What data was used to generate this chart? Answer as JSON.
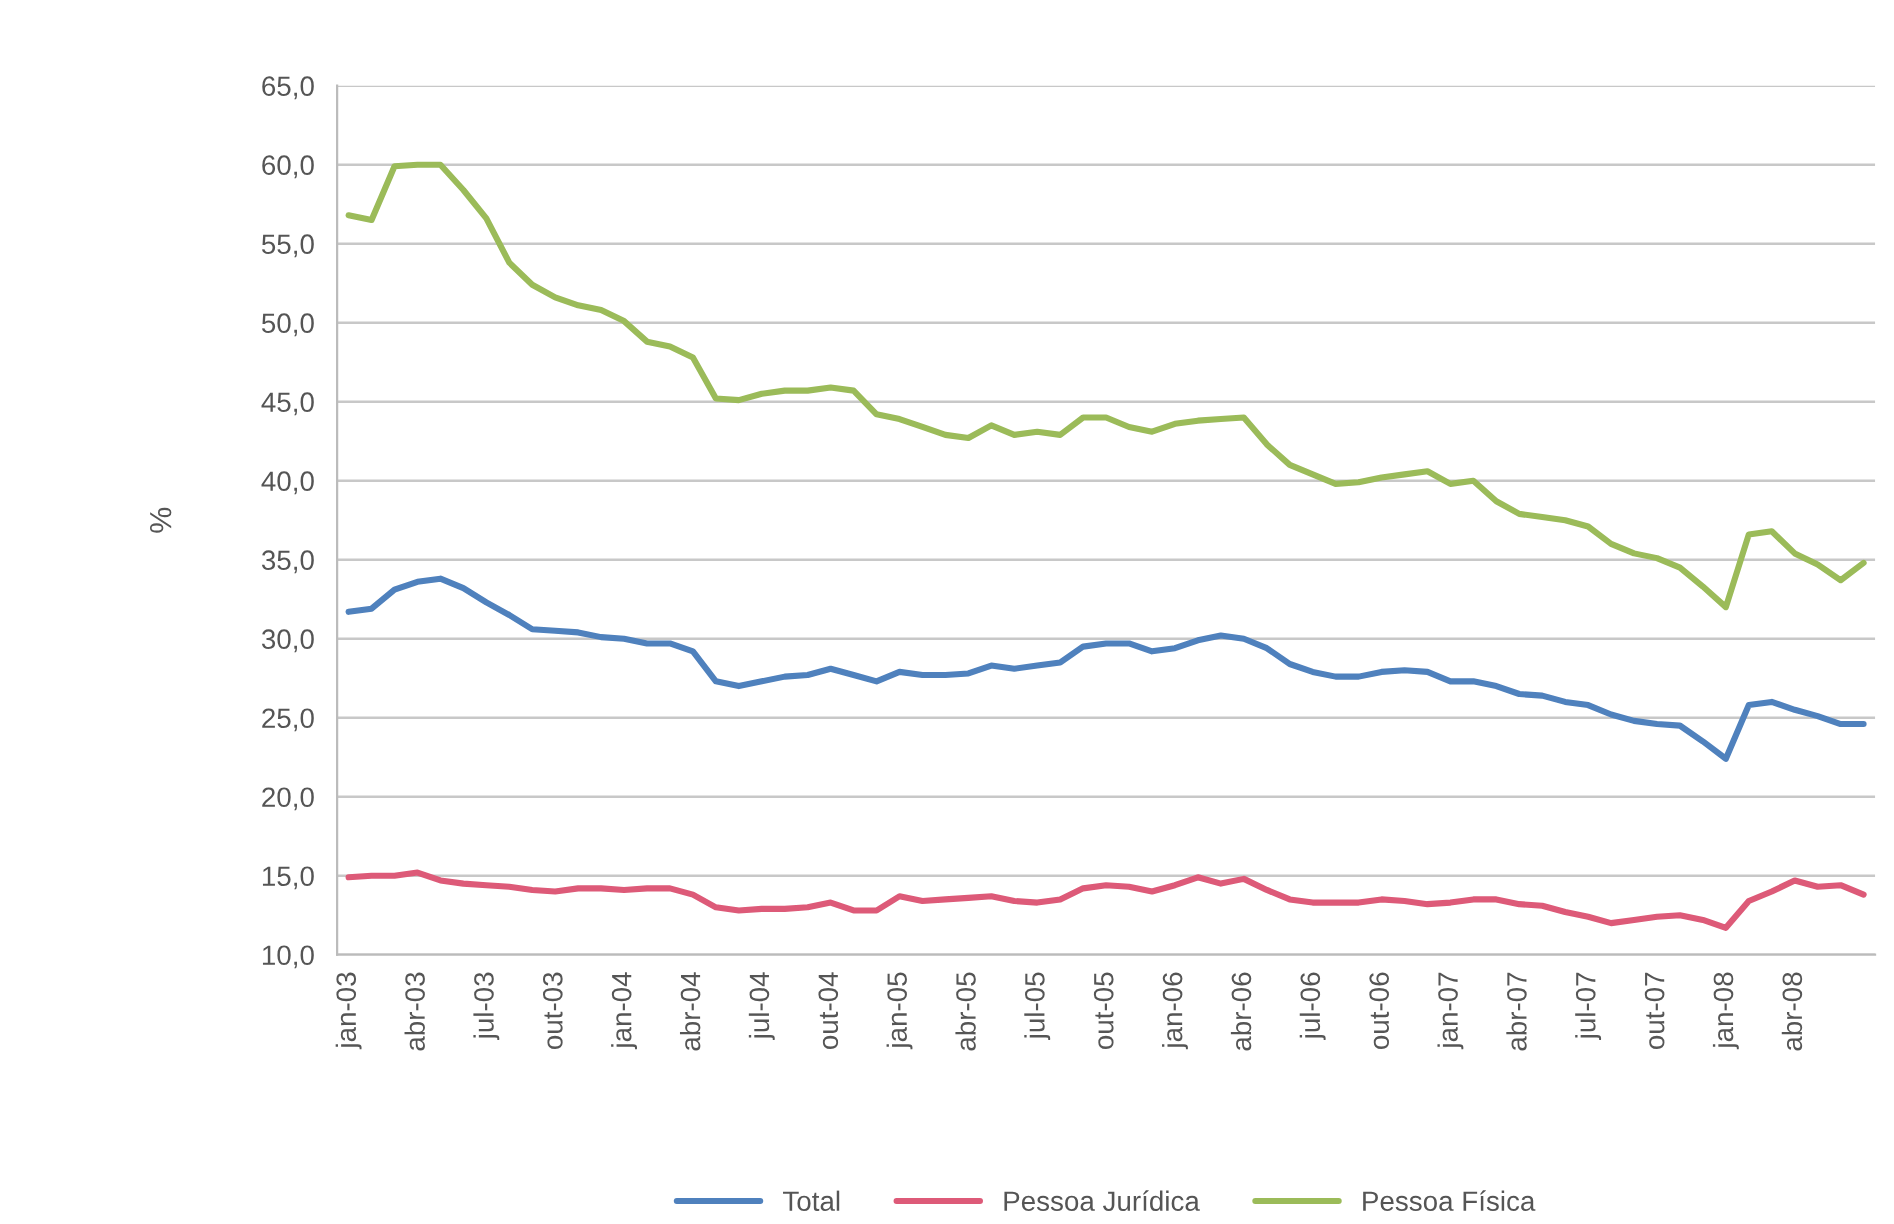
{
  "chart_data": {
    "type": "line",
    "ylabel": "%",
    "categories": [
      "jan-03",
      null,
      null,
      "abr-03",
      null,
      null,
      "jul-03",
      null,
      null,
      "out-03",
      null,
      null,
      "jan-04",
      null,
      null,
      "abr-04",
      null,
      null,
      "jul-04",
      null,
      null,
      "out-04",
      null,
      null,
      "jan-05",
      null,
      null,
      "abr-05",
      null,
      null,
      "jul-05",
      null,
      null,
      "out-05",
      null,
      null,
      "jan-06",
      null,
      null,
      "abr-06",
      null,
      null,
      "jul-06",
      null,
      null,
      "out-06",
      null,
      null,
      "jan-07",
      null,
      null,
      "abr-07",
      null,
      null,
      "jul-07",
      null,
      null,
      "out-07",
      null,
      null,
      "jan-08",
      null,
      null,
      "abr-08",
      null,
      null,
      null
    ],
    "series": [
      {
        "name": "Total",
        "color": "#4f81bd",
        "values": [
          31.7,
          31.9,
          33.1,
          33.6,
          33.8,
          33.2,
          32.3,
          31.5,
          30.6,
          30.5,
          30.4,
          30.1,
          30.0,
          29.7,
          29.7,
          29.2,
          27.3,
          27.0,
          27.3,
          27.6,
          27.7,
          28.1,
          27.7,
          27.3,
          27.9,
          27.7,
          27.7,
          27.8,
          28.3,
          28.1,
          28.3,
          28.5,
          29.5,
          29.7,
          29.7,
          29.2,
          29.4,
          29.9,
          30.2,
          30.0,
          29.4,
          28.4,
          27.9,
          27.6,
          27.6,
          27.9,
          28.0,
          27.9,
          27.3,
          27.3,
          27.0,
          26.5,
          26.4,
          26.0,
          25.8,
          25.2,
          24.8,
          24.6,
          24.5,
          23.5,
          22.4,
          25.8,
          26.0,
          25.5,
          25.1,
          24.6,
          24.6
        ]
      },
      {
        "name": "Pessoa Jurídica",
        "color": "#dd5a78",
        "values": [
          14.9,
          15.0,
          15.0,
          15.2,
          14.7,
          14.5,
          14.4,
          14.3,
          14.1,
          14.0,
          14.2,
          14.2,
          14.1,
          14.2,
          14.2,
          13.8,
          13.0,
          12.8,
          12.9,
          12.9,
          13.0,
          13.3,
          12.8,
          12.8,
          13.7,
          13.4,
          13.5,
          13.6,
          13.7,
          13.4,
          13.3,
          13.5,
          14.2,
          14.4,
          14.3,
          14.0,
          14.4,
          14.9,
          14.5,
          14.8,
          14.1,
          13.5,
          13.3,
          13.3,
          13.3,
          13.5,
          13.4,
          13.2,
          13.3,
          13.5,
          13.5,
          13.2,
          13.1,
          12.7,
          12.4,
          12.0,
          12.2,
          12.4,
          12.5,
          12.2,
          11.7,
          13.4,
          14.0,
          14.7,
          14.3,
          14.4,
          13.8
        ]
      },
      {
        "name": "Pessoa Física",
        "color": "#9bbb59",
        "values": [
          56.8,
          56.5,
          59.9,
          60.0,
          60.0,
          58.4,
          56.6,
          53.8,
          52.4,
          51.6,
          51.1,
          50.8,
          50.1,
          48.8,
          48.5,
          47.8,
          45.2,
          45.1,
          45.5,
          45.7,
          45.7,
          45.9,
          45.7,
          44.2,
          43.9,
          43.4,
          42.9,
          42.7,
          43.5,
          42.9,
          43.1,
          42.9,
          44.0,
          44.0,
          43.4,
          43.1,
          43.6,
          43.8,
          43.9,
          44.0,
          42.3,
          41.0,
          40.4,
          39.8,
          39.9,
          40.2,
          40.4,
          40.6,
          39.8,
          40.0,
          38.7,
          37.9,
          37.7,
          37.5,
          37.1,
          36.0,
          35.4,
          35.1,
          34.5,
          33.3,
          32.0,
          36.6,
          36.8,
          35.4,
          34.7,
          33.7,
          34.8
        ]
      }
    ],
    "ylim": [
      10,
      65
    ],
    "yticks": [
      {
        "value": 10,
        "label": "10,0"
      },
      {
        "value": 15,
        "label": "15,0"
      },
      {
        "value": 20,
        "label": "20,0"
      },
      {
        "value": 25,
        "label": "25,0"
      },
      {
        "value": 30,
        "label": "30,0"
      },
      {
        "value": 35,
        "label": "35,0"
      },
      {
        "value": 40,
        "label": "40,0"
      },
      {
        "value": 45,
        "label": "45,0"
      },
      {
        "value": 50,
        "label": "50,0"
      },
      {
        "value": 55,
        "label": "55,0"
      },
      {
        "value": 60,
        "label": "60,0"
      },
      {
        "value": 65,
        "label": "65,0"
      }
    ],
    "grid": "y",
    "legend": "bottom",
    "marker": "none",
    "line_style": "solid"
  }
}
